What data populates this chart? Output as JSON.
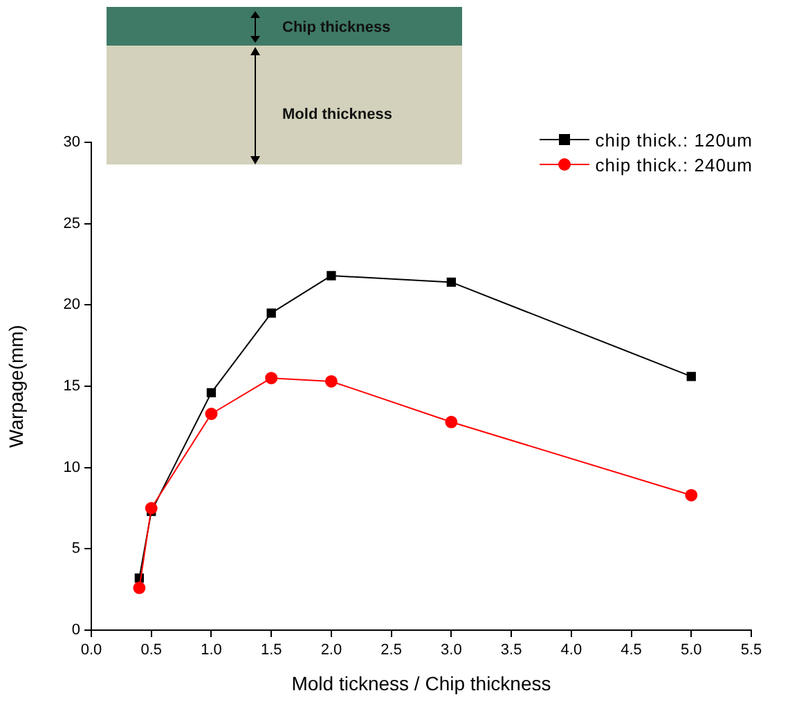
{
  "chart_data": {
    "type": "line",
    "xlabel": "Mold tickness / Chip thickness",
    "ylabel": "Warpage(mm)",
    "annotations": [
      "Chip thickness",
      "Mold thickness"
    ],
    "x": [
      0.4,
      0.5,
      1.0,
      1.5,
      2.0,
      3.0,
      5.0
    ],
    "series": [
      {
        "name": "chip thick.: 120um",
        "color": "#000000",
        "marker": "square",
        "values": [
          3.2,
          7.3,
          14.6,
          19.5,
          21.8,
          21.4,
          15.6
        ]
      },
      {
        "name": "chip thick.: 240um",
        "color": "#ff0000",
        "marker": "circle",
        "values": [
          2.6,
          7.5,
          13.3,
          15.5,
          15.3,
          12.8,
          8.3
        ]
      }
    ],
    "xlim": [
      0,
      5.5
    ],
    "xticks": [
      {
        "value": 0,
        "label": "0.0"
      },
      {
        "value": 0.5,
        "label": "0.5"
      },
      {
        "value": 1,
        "label": "1.0"
      },
      {
        "value": 1.5,
        "label": "1.5"
      },
      {
        "value": 2,
        "label": "2.0"
      },
      {
        "value": 2.5,
        "label": "2.5"
      },
      {
        "value": 3,
        "label": "3.0"
      },
      {
        "value": 3.5,
        "label": "3.5"
      },
      {
        "value": 4,
        "label": "4.0"
      },
      {
        "value": 4.5,
        "label": "4.5"
      },
      {
        "value": 5,
        "label": "5.0"
      },
      {
        "value": 5.5,
        "label": "5.5"
      }
    ],
    "ylim": [
      0,
      30
    ],
    "yticks": [
      0,
      5,
      10,
      15,
      20,
      25,
      30
    ],
    "legend": "top right",
    "line_style": "solid"
  }
}
